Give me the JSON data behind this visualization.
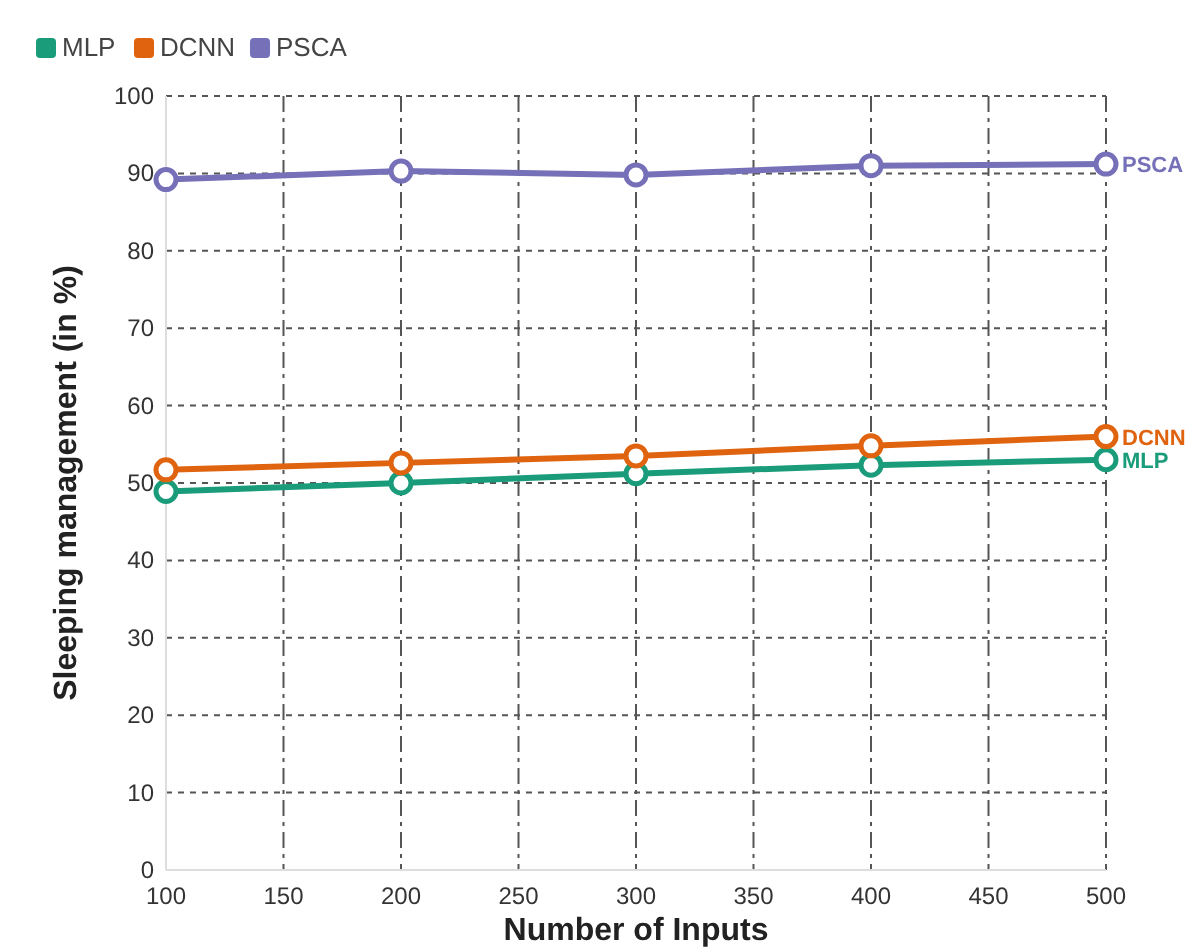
{
  "chart_data": {
    "type": "line",
    "xlabel": "Number of Inputs",
    "ylabel": "Sleeping management (in %)",
    "x": [
      100,
      200,
      300,
      400,
      500
    ],
    "series": [
      {
        "name": "MLP",
        "color": "#1a9c7b",
        "values": [
          48.9,
          50,
          51.2,
          52.3,
          53
        ]
      },
      {
        "name": "DCNN",
        "color": "#e0640f",
        "values": [
          51.7,
          52.6,
          53.5,
          54.8,
          56
        ]
      },
      {
        "name": "PSCA",
        "color": "#7570b8",
        "values": [
          89.2,
          90.3,
          89.8,
          91,
          91.2
        ]
      }
    ],
    "xlim": [
      100,
      500
    ],
    "xticks": [
      100,
      150,
      200,
      250,
      300,
      350,
      400,
      450,
      500
    ],
    "ylim": [
      0,
      100
    ],
    "yticks": [
      0,
      10,
      20,
      30,
      40,
      50,
      60,
      70,
      80,
      90,
      100
    ],
    "grid": true,
    "legend": "top left",
    "marker": "circle",
    "line_style": "solid"
  }
}
